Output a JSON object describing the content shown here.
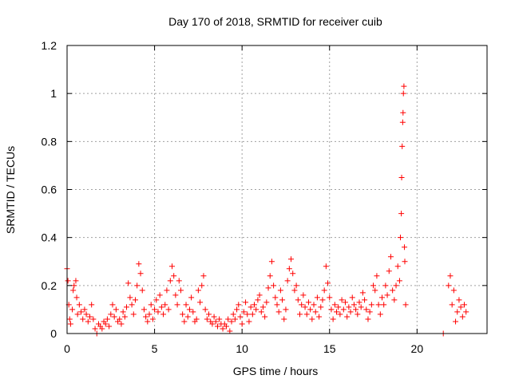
{
  "chart_data": {
    "type": "scatter",
    "title": "Day 170 of 2018, SRMTID for receiver cuib",
    "xlabel": "GPS time / hours",
    "ylabel": "SRMTID / TECUs",
    "xlim": [
      0,
      24
    ],
    "ylim": [
      0,
      1.2
    ],
    "x_ticks": [
      0,
      5,
      10,
      15,
      20
    ],
    "x_tick_labels": [
      "0",
      "5",
      "10",
      "15",
      "20"
    ],
    "y_ticks": [
      0,
      0.2,
      0.4,
      0.6,
      0.8,
      1.0,
      1.2
    ],
    "y_tick_labels": [
      "0",
      "0.2",
      "0.4",
      "0.6",
      "0.8",
      "1",
      "1.2"
    ],
    "grid": true,
    "marker": "+",
    "color": "#ff0000",
    "series": [
      {
        "name": "SRMTID",
        "points": [
          [
            0.0,
            0.27
          ],
          [
            0.05,
            0.22
          ],
          [
            0.1,
            0.12
          ],
          [
            0.15,
            0.06
          ],
          [
            0.2,
            0.04
          ],
          [
            0.3,
            0.1
          ],
          [
            0.35,
            0.18
          ],
          [
            0.4,
            0.2
          ],
          [
            0.5,
            0.22
          ],
          [
            0.55,
            0.15
          ],
          [
            0.6,
            0.08
          ],
          [
            0.7,
            0.12
          ],
          [
            0.8,
            0.09
          ],
          [
            0.9,
            0.06
          ],
          [
            1.0,
            0.1
          ],
          [
            1.1,
            0.08
          ],
          [
            1.2,
            0.05
          ],
          [
            1.3,
            0.07
          ],
          [
            1.4,
            0.12
          ],
          [
            1.5,
            0.06
          ],
          [
            1.6,
            0.02
          ],
          [
            1.7,
            0.0
          ],
          [
            1.8,
            0.04
          ],
          [
            1.9,
            0.03
          ],
          [
            2.0,
            0.02
          ],
          [
            2.1,
            0.05
          ],
          [
            2.2,
            0.04
          ],
          [
            2.3,
            0.06
          ],
          [
            2.4,
            0.03
          ],
          [
            2.5,
            0.08
          ],
          [
            2.6,
            0.12
          ],
          [
            2.7,
            0.07
          ],
          [
            2.8,
            0.1
          ],
          [
            2.9,
            0.05
          ],
          [
            3.0,
            0.06
          ],
          [
            3.1,
            0.04
          ],
          [
            3.2,
            0.09
          ],
          [
            3.3,
            0.07
          ],
          [
            3.4,
            0.11
          ],
          [
            3.5,
            0.21
          ],
          [
            3.6,
            0.15
          ],
          [
            3.7,
            0.12
          ],
          [
            3.8,
            0.08
          ],
          [
            3.9,
            0.14
          ],
          [
            4.0,
            0.2
          ],
          [
            4.1,
            0.29
          ],
          [
            4.2,
            0.25
          ],
          [
            4.3,
            0.18
          ],
          [
            4.4,
            0.1
          ],
          [
            4.5,
            0.07
          ],
          [
            4.6,
            0.05
          ],
          [
            4.7,
            0.08
          ],
          [
            4.8,
            0.12
          ],
          [
            4.9,
            0.06
          ],
          [
            5.0,
            0.1
          ],
          [
            5.1,
            0.14
          ],
          [
            5.2,
            0.09
          ],
          [
            5.3,
            0.16
          ],
          [
            5.4,
            0.11
          ],
          [
            5.5,
            0.08
          ],
          [
            5.6,
            0.12
          ],
          [
            5.7,
            0.18
          ],
          [
            5.8,
            0.1
          ],
          [
            5.9,
            0.22
          ],
          [
            6.0,
            0.28
          ],
          [
            6.1,
            0.24
          ],
          [
            6.2,
            0.16
          ],
          [
            6.3,
            0.12
          ],
          [
            6.4,
            0.22
          ],
          [
            6.5,
            0.18
          ],
          [
            6.6,
            0.08
          ],
          [
            6.7,
            0.05
          ],
          [
            6.8,
            0.12
          ],
          [
            6.9,
            0.07
          ],
          [
            7.0,
            0.1
          ],
          [
            7.1,
            0.15
          ],
          [
            7.2,
            0.09
          ],
          [
            7.3,
            0.05
          ],
          [
            7.4,
            0.06
          ],
          [
            7.5,
            0.18
          ],
          [
            7.6,
            0.13
          ],
          [
            7.7,
            0.2
          ],
          [
            7.8,
            0.24
          ],
          [
            7.9,
            0.1
          ],
          [
            8.0,
            0.06
          ],
          [
            8.1,
            0.08
          ],
          [
            8.2,
            0.05
          ],
          [
            8.3,
            0.04
          ],
          [
            8.4,
            0.07
          ],
          [
            8.5,
            0.05
          ],
          [
            8.6,
            0.03
          ],
          [
            8.7,
            0.06
          ],
          [
            8.8,
            0.04
          ],
          [
            8.9,
            0.02
          ],
          [
            9.0,
            0.04
          ],
          [
            9.1,
            0.03
          ],
          [
            9.2,
            0.06
          ],
          [
            9.3,
            0.01
          ],
          [
            9.4,
            0.05
          ],
          [
            9.5,
            0.08
          ],
          [
            9.6,
            0.06
          ],
          [
            9.7,
            0.1
          ],
          [
            9.8,
            0.12
          ],
          [
            9.9,
            0.07
          ],
          [
            10.0,
            0.04
          ],
          [
            10.1,
            0.09
          ],
          [
            10.2,
            0.13
          ],
          [
            10.3,
            0.08
          ],
          [
            10.4,
            0.05
          ],
          [
            10.5,
            0.11
          ],
          [
            10.6,
            0.08
          ],
          [
            10.7,
            0.12
          ],
          [
            10.8,
            0.1
          ],
          [
            10.9,
            0.14
          ],
          [
            11.0,
            0.16
          ],
          [
            11.1,
            0.09
          ],
          [
            11.2,
            0.11
          ],
          [
            11.3,
            0.07
          ],
          [
            11.4,
            0.13
          ],
          [
            11.5,
            0.19
          ],
          [
            11.6,
            0.24
          ],
          [
            11.7,
            0.3
          ],
          [
            11.8,
            0.2
          ],
          [
            11.9,
            0.15
          ],
          [
            12.0,
            0.12
          ],
          [
            12.1,
            0.09
          ],
          [
            12.2,
            0.18
          ],
          [
            12.3,
            0.14
          ],
          [
            12.4,
            0.06
          ],
          [
            12.5,
            0.1
          ],
          [
            12.6,
            0.22
          ],
          [
            12.7,
            0.27
          ],
          [
            12.8,
            0.31
          ],
          [
            12.9,
            0.25
          ],
          [
            13.0,
            0.18
          ],
          [
            13.1,
            0.2
          ],
          [
            13.2,
            0.14
          ],
          [
            13.3,
            0.08
          ],
          [
            13.4,
            0.12
          ],
          [
            13.5,
            0.16
          ],
          [
            13.6,
            0.11
          ],
          [
            13.7,
            0.08
          ],
          [
            13.8,
            0.13
          ],
          [
            13.9,
            0.1
          ],
          [
            14.0,
            0.06
          ],
          [
            14.1,
            0.12
          ],
          [
            14.2,
            0.09
          ],
          [
            14.3,
            0.15
          ],
          [
            14.4,
            0.07
          ],
          [
            14.5,
            0.11
          ],
          [
            14.6,
            0.14
          ],
          [
            14.7,
            0.18
          ],
          [
            14.8,
            0.28
          ],
          [
            14.9,
            0.21
          ],
          [
            15.0,
            0.15
          ],
          [
            15.1,
            0.1
          ],
          [
            15.2,
            0.06
          ],
          [
            15.3,
            0.12
          ],
          [
            15.4,
            0.09
          ],
          [
            15.5,
            0.11
          ],
          [
            15.6,
            0.08
          ],
          [
            15.7,
            0.14
          ],
          [
            15.8,
            0.1
          ],
          [
            15.9,
            0.13
          ],
          [
            16.0,
            0.07
          ],
          [
            16.1,
            0.11
          ],
          [
            16.2,
            0.09
          ],
          [
            16.3,
            0.15
          ],
          [
            16.4,
            0.12
          ],
          [
            16.5,
            0.1
          ],
          [
            16.6,
            0.08
          ],
          [
            16.7,
            0.13
          ],
          [
            16.8,
            0.11
          ],
          [
            16.9,
            0.17
          ],
          [
            17.0,
            0.14
          ],
          [
            17.1,
            0.1
          ],
          [
            17.2,
            0.06
          ],
          [
            17.3,
            0.09
          ],
          [
            17.4,
            0.12
          ],
          [
            17.5,
            0.2
          ],
          [
            17.6,
            0.18
          ],
          [
            17.7,
            0.24
          ],
          [
            17.8,
            0.12
          ],
          [
            17.9,
            0.08
          ],
          [
            18.0,
            0.15
          ],
          [
            18.1,
            0.12
          ],
          [
            18.2,
            0.2
          ],
          [
            18.3,
            0.16
          ],
          [
            18.4,
            0.26
          ],
          [
            18.5,
            0.32
          ],
          [
            18.6,
            0.18
          ],
          [
            18.7,
            0.14
          ],
          [
            18.8,
            0.2
          ],
          [
            18.9,
            0.28
          ],
          [
            19.0,
            0.22
          ],
          [
            19.05,
            0.4
          ],
          [
            19.1,
            0.5
          ],
          [
            19.12,
            0.65
          ],
          [
            19.15,
            0.78
          ],
          [
            19.18,
            0.88
          ],
          [
            19.2,
            0.92
          ],
          [
            19.22,
            1.0
          ],
          [
            19.25,
            1.03
          ],
          [
            19.28,
            0.36
          ],
          [
            19.3,
            0.3
          ],
          [
            19.35,
            0.12
          ],
          [
            21.5,
            0.0
          ],
          [
            21.8,
            0.2
          ],
          [
            21.9,
            0.24
          ],
          [
            22.0,
            0.12
          ],
          [
            22.1,
            0.18
          ],
          [
            22.2,
            0.05
          ],
          [
            22.3,
            0.09
          ],
          [
            22.4,
            0.14
          ],
          [
            22.5,
            0.11
          ],
          [
            22.6,
            0.07
          ],
          [
            22.7,
            0.12
          ],
          [
            22.8,
            0.09
          ]
        ]
      }
    ]
  }
}
